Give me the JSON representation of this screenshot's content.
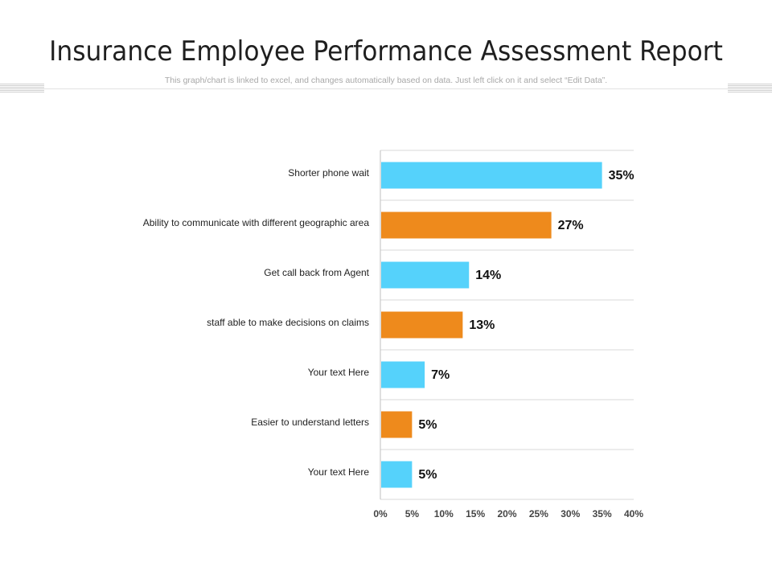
{
  "header": {
    "title": "Insurance Employee Performance Assessment Report",
    "subtitle": "This graph/chart is linked to excel, and changes automatically based on data. Just left click on it and select “Edit Data”."
  },
  "colors": {
    "blue": "#55d2fb",
    "orange": "#ee8a1c",
    "grid": "#d9d9d9",
    "axis": "#bfbfbf"
  },
  "chart_data": {
    "type": "bar",
    "orientation": "horizontal",
    "categories": [
      "Shorter phone wait",
      "Ability to communicate with different geographic area",
      "Get call back from Agent",
      "staff able to make decisions on claims",
      "Your text Here",
      "Easier to understand letters",
      "Your text Here"
    ],
    "values": [
      35,
      27,
      14,
      13,
      7,
      5,
      5
    ],
    "value_labels": [
      "35%",
      "27%",
      "14%",
      "13%",
      "7%",
      "5%",
      "5%"
    ],
    "bar_colors": [
      "#55d2fb",
      "#ee8a1c",
      "#55d2fb",
      "#ee8a1c",
      "#55d2fb",
      "#ee8a1c",
      "#55d2fb"
    ],
    "xlim": [
      0,
      40
    ],
    "x_ticks": [
      0,
      5,
      10,
      15,
      20,
      25,
      30,
      35,
      40
    ],
    "x_tick_labels": [
      "0%",
      "5%",
      "10%",
      "15%",
      "20%",
      "25%",
      "30%",
      "35%",
      "40%"
    ],
    "grid": true,
    "legend": "none"
  }
}
